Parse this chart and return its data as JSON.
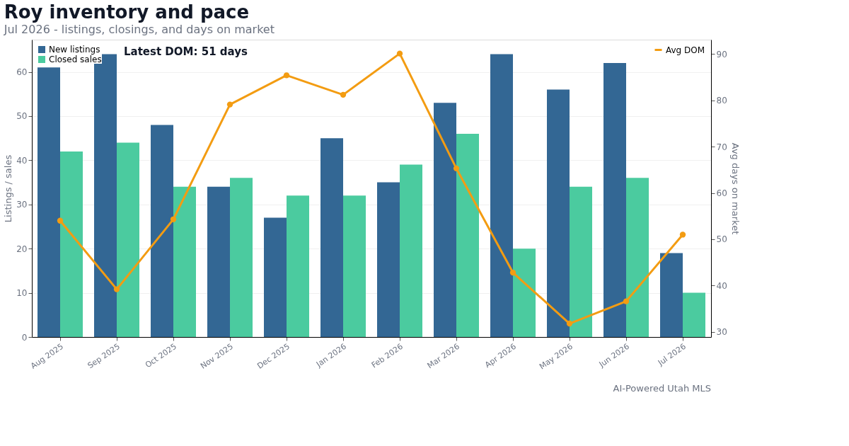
{
  "chart_data": {
    "type": "bar",
    "title": "Roy inventory and pace",
    "subtitle": "Jul 2026 - listings, closings, and days on market",
    "categories": [
      "Aug 2025",
      "Sep 2025",
      "Oct 2025",
      "Nov 2025",
      "Dec 2025",
      "Jan 2026",
      "Feb 2026",
      "Mar 2026",
      "Apr 2026",
      "May 2026",
      "Jun 2026",
      "Jul 2026"
    ],
    "series": [
      {
        "name": "New listings",
        "color": "#336794",
        "values": [
          61,
          64,
          48,
          34,
          27,
          45,
          35,
          53,
          64,
          56,
          62,
          19
        ]
      },
      {
        "name": "Closed sales",
        "color": "#4bcb9f",
        "values": [
          42,
          44,
          34,
          36,
          32,
          32,
          39,
          46,
          20,
          34,
          36,
          10
        ]
      },
      {
        "name": "Avg DOM",
        "type": "line",
        "axis": "y2",
        "color": "#f39c12",
        "marker": "circle",
        "values": [
          54.0,
          39.2,
          54.3,
          79.1,
          85.4,
          81.2,
          90.1,
          65.3,
          42.8,
          31.8,
          36.6,
          51
        ]
      }
    ],
    "ylabel": "Listings / sales",
    "y2label": "Avg days on market",
    "ylim": [
      0,
      67.3
    ],
    "yticks": [
      0,
      10,
      20,
      30,
      40,
      50,
      60
    ],
    "y2lim": [
      28.9,
      93.1
    ],
    "y2ticks": [
      30,
      40,
      50,
      60,
      70,
      80,
      90
    ],
    "grid": "y",
    "legend": "top left",
    "annotations": [
      "Latest DOM: 51 days",
      "AI-Powered Utah MLS"
    ]
  }
}
